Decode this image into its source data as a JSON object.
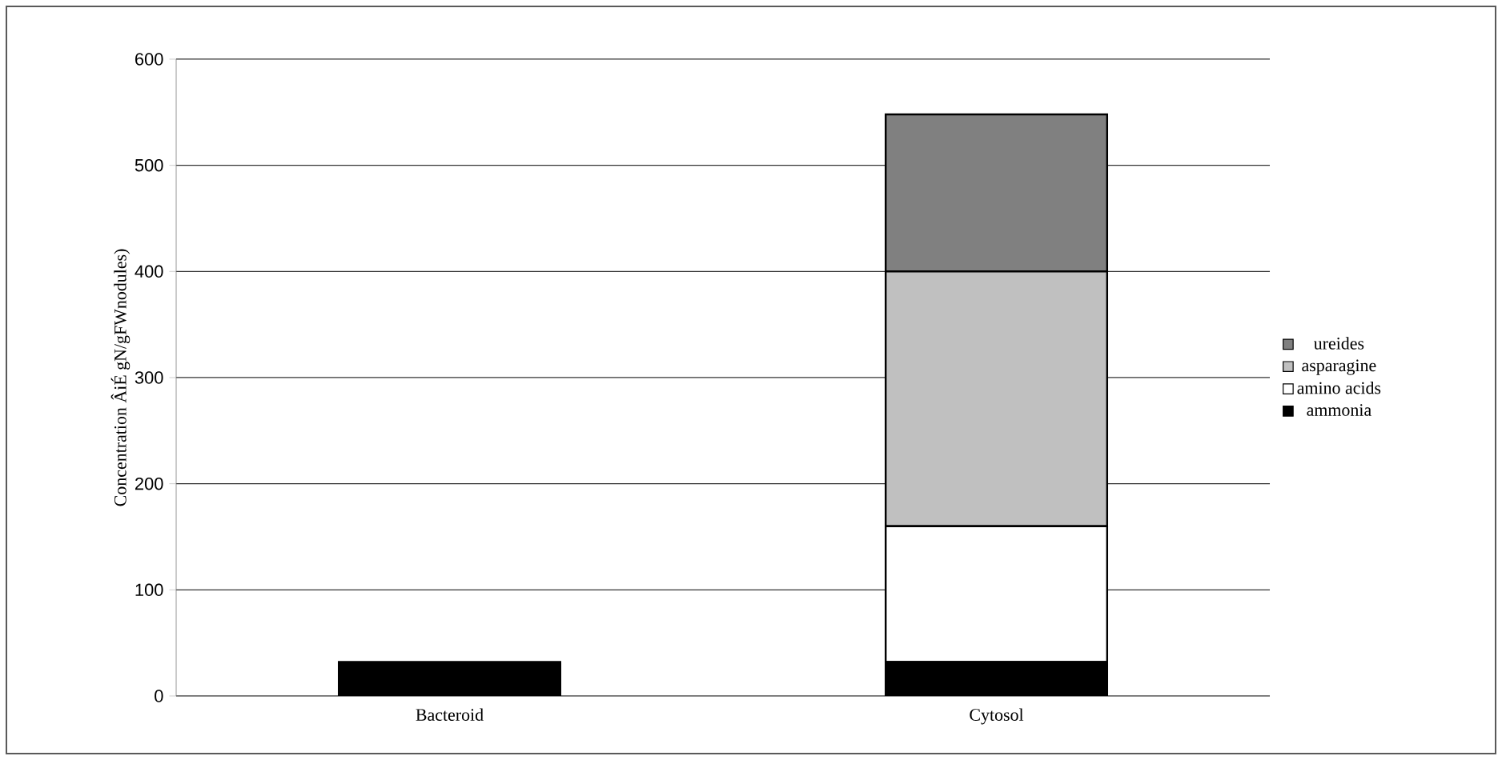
{
  "chart_data": {
    "type": "bar",
    "stacked": true,
    "ylabel": "Concentration ÂiÉ gN/gFWnodules)",
    "categories": [
      "Bacteroid",
      "Cytosol"
    ],
    "series": [
      {
        "name": "ammonia",
        "color": "#000000",
        "values": [
          32,
          32
        ]
      },
      {
        "name": "amino acids",
        "color": "#ffffff",
        "values": [
          null,
          128
        ]
      },
      {
        "name": "asparagine",
        "color": "#c0c0c0",
        "values": [
          null,
          240
        ]
      },
      {
        "name": "ureides",
        "color": "#808080",
        "values": [
          null,
          148
        ]
      }
    ],
    "ylim": [
      0,
      600
    ],
    "yticks": [
      0,
      100,
      200,
      300,
      400,
      500,
      600
    ],
    "grid": "y",
    "legend": "right"
  }
}
